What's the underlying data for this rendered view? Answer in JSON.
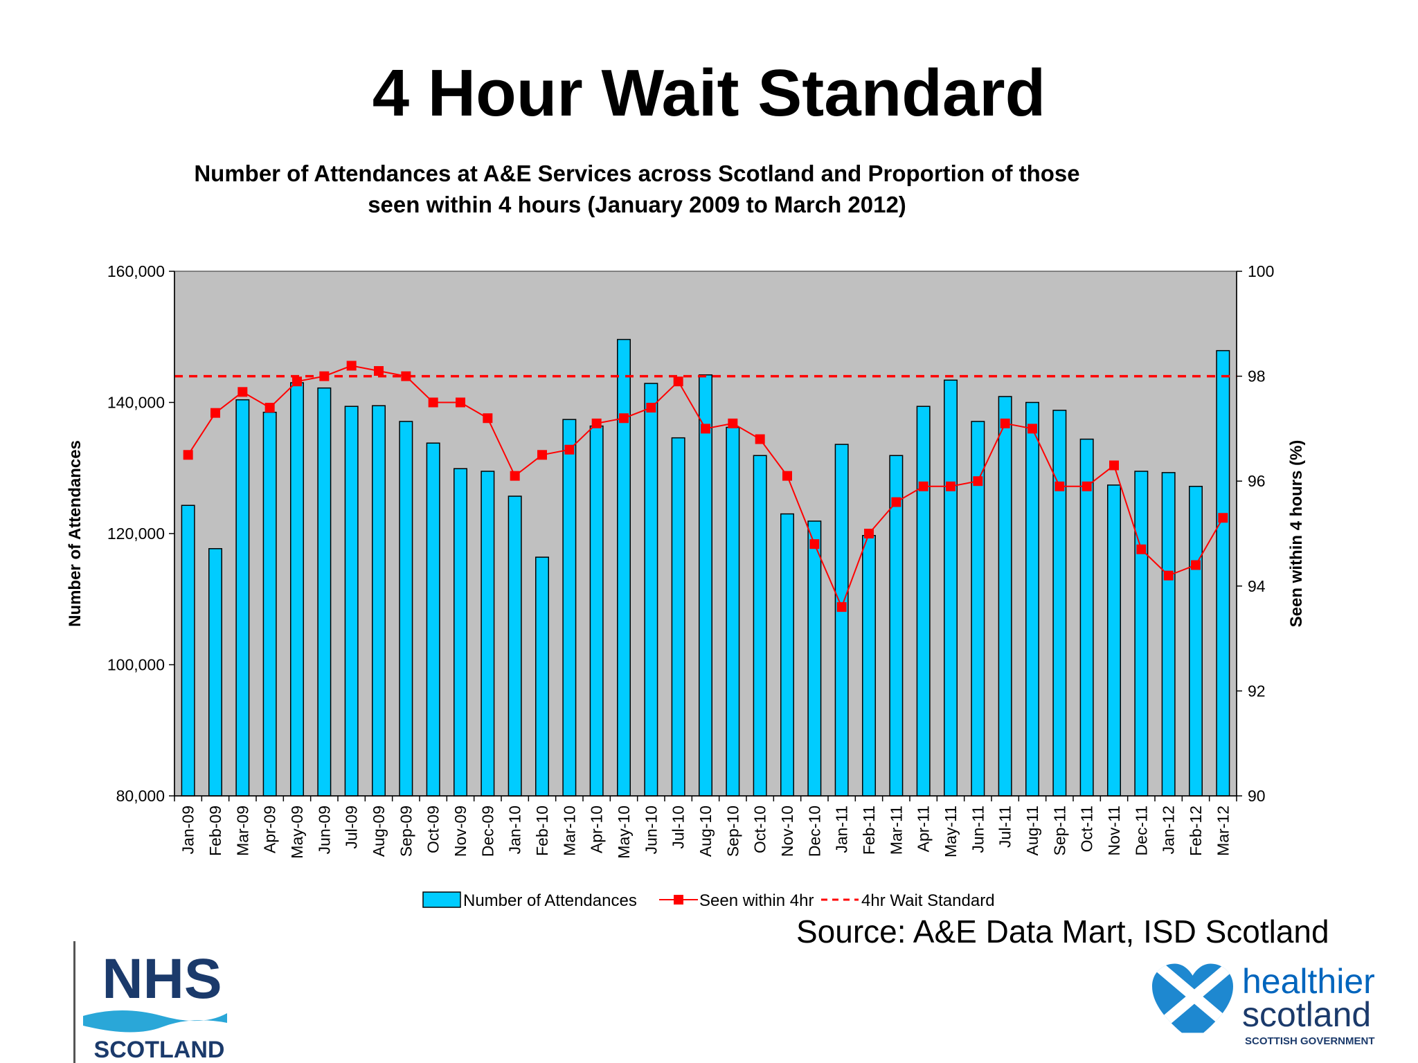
{
  "page": {
    "title": "4 Hour Wait Standard",
    "source": "Source:  A&E Data Mart, ISD Scotland"
  },
  "logos": {
    "nhs_top": "NHS",
    "nhs_bottom": "SCOTLAND",
    "hs_line1": "healthier",
    "hs_line2": "scotland",
    "hs_line3": "SCOTTISH GOVERNMENT"
  },
  "colors": {
    "bar_fill": "#00CCFF",
    "line": "#FF0000",
    "plot_bg": "#C0C0C0",
    "nhs_blue": "#1B3A6B",
    "hs_blue": "#0065BD"
  },
  "chart_data": {
    "type": "bar",
    "title": "Number of Attendances at A&E Services across Scotland and Proportion of those seen within 4 hours (January 2009 to March 2012)",
    "title_lines": [
      "Number of Attendances at A&E Services across Scotland and Proportion of those",
      "seen within 4 hours (January 2009 to March 2012)"
    ],
    "ylabel": "Number of Attendances",
    "y2label": "Seen within 4 hours (%)",
    "ylim": [
      80000,
      160000
    ],
    "y2lim": [
      90,
      100
    ],
    "yticks": [
      "80,000",
      "100,000",
      "120,000",
      "140,000",
      "160,000"
    ],
    "y2ticks": [
      "90",
      "92",
      "94",
      "96",
      "98",
      "100"
    ],
    "grid": false,
    "legend_position": "bottom",
    "categories": [
      "Jan-09",
      "Feb-09",
      "Mar-09",
      "Apr-09",
      "May-09",
      "Jun-09",
      "Jul-09",
      "Aug-09",
      "Sep-09",
      "Oct-09",
      "Nov-09",
      "Dec-09",
      "Jan-10",
      "Feb-10",
      "Mar-10",
      "Apr-10",
      "May-10",
      "Jun-10",
      "Jul-10",
      "Aug-10",
      "Sep-10",
      "Oct-10",
      "Nov-10",
      "Dec-10",
      "Jan-11",
      "Feb-11",
      "Mar-11",
      "Apr-11",
      "May-11",
      "Jun-11",
      "Jul-11",
      "Aug-11",
      "Sep-11",
      "Oct-11",
      "Nov-11",
      "Dec-11",
      "Jan-12",
      "Feb-12",
      "Mar-12"
    ],
    "series": [
      {
        "name": "Number of Attendances",
        "type": "bar",
        "axis": "left",
        "values": [
          124300,
          117700,
          140400,
          138500,
          143000,
          142200,
          139400,
          139500,
          137100,
          133800,
          129900,
          129500,
          125700,
          116400,
          137400,
          136400,
          149600,
          142900,
          134600,
          144200,
          136200,
          131900,
          123000,
          121900,
          133600,
          119700,
          131900,
          139400,
          143400,
          137100,
          140900,
          140000,
          138800,
          134400,
          127400,
          129500,
          129300,
          127200,
          147900
        ]
      },
      {
        "name": "Seen within 4hr",
        "type": "line",
        "axis": "right",
        "values": [
          96.5,
          97.3,
          97.7,
          97.4,
          97.9,
          98.0,
          98.2,
          98.1,
          98.0,
          97.5,
          97.5,
          97.2,
          96.1,
          96.5,
          96.6,
          97.1,
          97.2,
          97.4,
          97.9,
          97.0,
          97.1,
          96.8,
          96.1,
          94.8,
          93.6,
          95.0,
          95.6,
          95.9,
          95.9,
          96.0,
          97.1,
          97.0,
          95.9,
          95.9,
          96.3,
          94.7,
          94.2,
          94.4,
          95.3
        ]
      },
      {
        "name": "4hr Wait Standard",
        "type": "line-dashed",
        "axis": "right",
        "value": 98
      }
    ]
  }
}
